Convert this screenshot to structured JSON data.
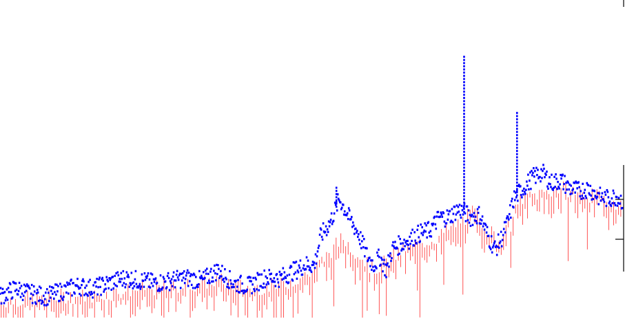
{
  "chart_data": {
    "type": "line",
    "title": "",
    "xlabel": "",
    "ylabel": "",
    "grid": false,
    "legend": "none",
    "xlim": [
      0,
      1000
    ],
    "ylim": [
      0,
      100
    ],
    "series": [
      {
        "color": "#0000ff",
        "style": "dotted",
        "keypoints": [
          [
            0,
            8
          ],
          [
            25,
            11
          ],
          [
            50,
            9
          ],
          [
            75,
            8
          ],
          [
            100,
            10
          ],
          [
            125,
            12
          ],
          [
            150,
            11
          ],
          [
            175,
            13
          ],
          [
            200,
            15
          ],
          [
            225,
            14
          ],
          [
            250,
            13
          ],
          [
            275,
            14
          ],
          [
            300,
            15
          ],
          [
            325,
            14
          ],
          [
            350,
            18
          ],
          [
            375,
            13
          ],
          [
            400,
            12
          ],
          [
            425,
            15
          ],
          [
            450,
            15
          ],
          [
            475,
            18
          ],
          [
            490,
            20
          ],
          [
            505,
            20
          ],
          [
            515,
            31
          ],
          [
            530,
            36
          ],
          [
            545,
            45
          ],
          [
            560,
            38
          ],
          [
            575,
            32
          ],
          [
            590,
            23
          ],
          [
            600,
            20
          ],
          [
            610,
            23
          ],
          [
            620,
            18
          ],
          [
            630,
            26
          ],
          [
            645,
            28
          ],
          [
            660,
            30
          ],
          [
            675,
            32
          ],
          [
            690,
            33
          ],
          [
            705,
            38
          ],
          [
            720,
            38
          ],
          [
            735,
            41
          ],
          [
            745,
            40
          ],
          [
            755,
            38
          ],
          [
            770,
            39
          ],
          [
            785,
            30
          ],
          [
            795,
            26
          ],
          [
            805,
            30
          ],
          [
            815,
            36
          ],
          [
            825,
            45
          ],
          [
            840,
            49
          ],
          [
            855,
            53
          ],
          [
            870,
            55
          ],
          [
            885,
            51
          ],
          [
            900,
            52
          ],
          [
            915,
            49
          ],
          [
            930,
            48
          ],
          [
            945,
            49
          ],
          [
            960,
            46
          ],
          [
            975,
            45
          ],
          [
            990,
            46
          ],
          [
            1000,
            44
          ]
        ]
      },
      {
        "color": "#ff0000",
        "style": "spikes",
        "keypoints": [
          [
            0,
            5
          ],
          [
            50,
            6
          ],
          [
            100,
            7
          ],
          [
            150,
            7
          ],
          [
            200,
            9
          ],
          [
            250,
            10
          ],
          [
            300,
            11
          ],
          [
            350,
            13
          ],
          [
            400,
            10
          ],
          [
            450,
            11
          ],
          [
            500,
            16
          ],
          [
            550,
            29
          ],
          [
            600,
            17
          ],
          [
            650,
            25
          ],
          [
            700,
            29
          ],
          [
            745,
            36
          ],
          [
            760,
            39
          ],
          [
            800,
            28
          ],
          [
            820,
            34
          ],
          [
            835,
            44
          ],
          [
            900,
            48
          ],
          [
            1000,
            42
          ]
        ]
      }
    ],
    "spikes": [
      {
        "series": 0,
        "x": 745,
        "y": 100
      },
      {
        "series": 0,
        "x": 830,
        "y": 78
      },
      {
        "series": 0,
        "x": 540,
        "y": 50
      }
    ]
  }
}
